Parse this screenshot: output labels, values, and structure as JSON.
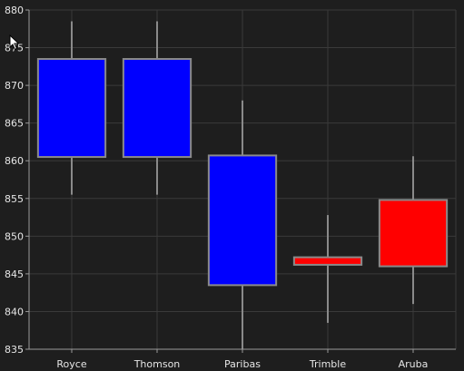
{
  "chart_data": {
    "type": "candlestick",
    "categories": [
      "Royce",
      "Thomson",
      "Paribas",
      "Trimble",
      "Aruba"
    ],
    "candles": [
      {
        "category": "Royce",
        "open": 860.5,
        "close": 873.5,
        "high": 878.5,
        "low": 855.5,
        "direction": "up"
      },
      {
        "category": "Thomson",
        "open": 860.5,
        "close": 873.5,
        "high": 878.5,
        "low": 855.5,
        "direction": "up"
      },
      {
        "category": "Paribas",
        "open": 843.5,
        "close": 860.7,
        "high": 868.0,
        "low": 835.0,
        "direction": "up"
      },
      {
        "category": "Trimble",
        "open": 847.2,
        "close": 846.2,
        "high": 852.8,
        "low": 838.5,
        "direction": "down"
      },
      {
        "category": "Aruba",
        "open": 854.8,
        "close": 846.0,
        "high": 860.6,
        "low": 841.0,
        "direction": "down"
      }
    ],
    "ylim": [
      835,
      880
    ],
    "yticks": [
      835,
      840,
      845,
      850,
      855,
      860,
      865,
      870,
      875,
      880
    ],
    "ytick_labels": [
      "835",
      "840",
      "845",
      "850",
      "855",
      "860",
      "865",
      "870",
      "875",
      "880"
    ],
    "grid": true,
    "colors": {
      "background": "#1e1e1e",
      "up": "#0000ff",
      "down": "#ff0000",
      "outline": "#8a8a8a",
      "grid": "#3a3a3a",
      "axis": "#9a9a9a",
      "text": "#e6e6e6"
    }
  }
}
